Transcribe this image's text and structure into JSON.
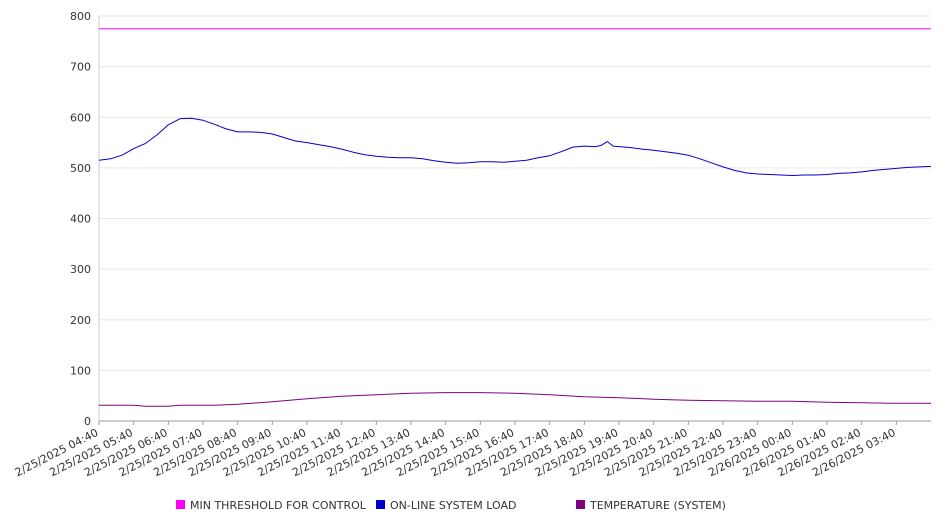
{
  "chart_data": {
    "type": "line",
    "title": "",
    "xlabel": "",
    "ylabel": "",
    "ylim": [
      0,
      800
    ],
    "y_ticks": [
      0,
      100,
      200,
      300,
      400,
      500,
      600,
      700,
      800
    ],
    "x_tick_labels": [
      "2/25/2025 04:40",
      "2/25/2025 05:40",
      "2/25/2025 06:40",
      "2/25/2025 07:40",
      "2/25/2025 08:40",
      "2/25/2025 09:40",
      "2/25/2025 10:40",
      "2/25/2025 11:40",
      "2/25/2025 12:40",
      "2/25/2025 13:40",
      "2/25/2025 14:40",
      "2/25/2025 15:40",
      "2/25/2025 16:40",
      "2/25/2025 17:40",
      "2/25/2025 18:40",
      "2/25/2025 19:40",
      "2/25/2025 20:40",
      "2/25/2025 21:40",
      "2/25/2025 22:40",
      "2/25/2025 23:40",
      "2/26/2025 00:40",
      "2/26/2025 01:40",
      "2/26/2025 02:40",
      "2/26/2025 03:40"
    ],
    "x_range": [
      "2/25/2025 04:40",
      "2/26/2025 04:40"
    ],
    "grid": "horizontal",
    "legend_position": "bottom",
    "series": [
      {
        "name": "MIN THRESHOLD FOR CONTROL",
        "color": "#ff00ff",
        "points": [
          [
            "2/25/2025 04:40",
            775
          ],
          [
            "2/26/2025 04:40",
            775
          ]
        ]
      },
      {
        "name": "ON-LINE SYSTEM LOAD",
        "color": "#0000cc",
        "points": [
          [
            "2/25/2025 04:40",
            515
          ],
          [
            "2/25/2025 05:00",
            518
          ],
          [
            "2/25/2025 05:20",
            525
          ],
          [
            "2/25/2025 05:40",
            538
          ],
          [
            "2/25/2025 06:00",
            548
          ],
          [
            "2/25/2025 06:20",
            565
          ],
          [
            "2/25/2025 06:40",
            585
          ],
          [
            "2/25/2025 07:00",
            597
          ],
          [
            "2/25/2025 07:20",
            598
          ],
          [
            "2/25/2025 07:40",
            594
          ],
          [
            "2/25/2025 08:00",
            586
          ],
          [
            "2/25/2025 08:20",
            577
          ],
          [
            "2/25/2025 08:40",
            571
          ],
          [
            "2/25/2025 09:00",
            571
          ],
          [
            "2/25/2025 09:20",
            570
          ],
          [
            "2/25/2025 09:40",
            567
          ],
          [
            "2/25/2025 10:00",
            560
          ],
          [
            "2/25/2025 10:20",
            553
          ],
          [
            "2/25/2025 10:40",
            550
          ],
          [
            "2/25/2025 11:00",
            546
          ],
          [
            "2/25/2025 11:20",
            542
          ],
          [
            "2/25/2025 11:40",
            537
          ],
          [
            "2/25/2025 12:00",
            531
          ],
          [
            "2/25/2025 12:20",
            526
          ],
          [
            "2/25/2025 12:40",
            523
          ],
          [
            "2/25/2025 13:00",
            521
          ],
          [
            "2/25/2025 13:20",
            520
          ],
          [
            "2/25/2025 13:40",
            520
          ],
          [
            "2/25/2025 14:00",
            518
          ],
          [
            "2/25/2025 14:20",
            514
          ],
          [
            "2/25/2025 14:40",
            511
          ],
          [
            "2/25/2025 15:00",
            509
          ],
          [
            "2/25/2025 15:20",
            510
          ],
          [
            "2/25/2025 15:40",
            512
          ],
          [
            "2/25/2025 16:00",
            512
          ],
          [
            "2/25/2025 16:20",
            511
          ],
          [
            "2/25/2025 16:40",
            513
          ],
          [
            "2/25/2025 17:00",
            515
          ],
          [
            "2/25/2025 17:20",
            520
          ],
          [
            "2/25/2025 17:40",
            524
          ],
          [
            "2/25/2025 18:00",
            532
          ],
          [
            "2/25/2025 18:20",
            541
          ],
          [
            "2/25/2025 18:40",
            543
          ],
          [
            "2/25/2025 19:00",
            542
          ],
          [
            "2/25/2025 19:10",
            545
          ],
          [
            "2/25/2025 19:20",
            552
          ],
          [
            "2/25/2025 19:30",
            543
          ],
          [
            "2/25/2025 20:00",
            540
          ],
          [
            "2/25/2025 20:20",
            537
          ],
          [
            "2/25/2025 20:40",
            535
          ],
          [
            "2/25/2025 21:00",
            532
          ],
          [
            "2/25/2025 21:20",
            529
          ],
          [
            "2/25/2025 21:40",
            525
          ],
          [
            "2/25/2025 22:00",
            518
          ],
          [
            "2/25/2025 22:20",
            510
          ],
          [
            "2/25/2025 22:40",
            502
          ],
          [
            "2/25/2025 23:00",
            495
          ],
          [
            "2/25/2025 23:20",
            490
          ],
          [
            "2/25/2025 23:40",
            488
          ],
          [
            "2/26/2025 00:00",
            487
          ],
          [
            "2/26/2025 00:20",
            486
          ],
          [
            "2/26/2025 00:40",
            485
          ],
          [
            "2/26/2025 01:00",
            486
          ],
          [
            "2/26/2025 01:20",
            486
          ],
          [
            "2/26/2025 01:40",
            487
          ],
          [
            "2/26/2025 02:00",
            489
          ],
          [
            "2/26/2025 02:20",
            490
          ],
          [
            "2/26/2025 02:40",
            492
          ],
          [
            "2/26/2025 03:00",
            495
          ],
          [
            "2/26/2025 03:20",
            497
          ],
          [
            "2/26/2025 03:40",
            499
          ],
          [
            "2/26/2025 04:00",
            501
          ],
          [
            "2/26/2025 04:40",
            503
          ]
        ]
      },
      {
        "name": "TEMPERATURE (SYSTEM)",
        "color": "#800080",
        "points": [
          [
            "2/25/2025 04:40",
            31
          ],
          [
            "2/25/2025 05:40",
            31
          ],
          [
            "2/25/2025 06:00",
            29
          ],
          [
            "2/25/2025 06:40",
            29
          ],
          [
            "2/25/2025 07:00",
            31
          ],
          [
            "2/25/2025 08:00",
            31
          ],
          [
            "2/25/2025 08:40",
            33
          ],
          [
            "2/25/2025 09:40",
            38
          ],
          [
            "2/25/2025 10:40",
            44
          ],
          [
            "2/25/2025 11:40",
            49
          ],
          [
            "2/25/2025 12:40",
            52
          ],
          [
            "2/25/2025 13:40",
            55
          ],
          [
            "2/25/2025 14:40",
            56
          ],
          [
            "2/25/2025 15:40",
            56
          ],
          [
            "2/25/2025 16:40",
            55
          ],
          [
            "2/25/2025 17:40",
            52
          ],
          [
            "2/25/2025 18:40",
            48
          ],
          [
            "2/25/2025 19:40",
            46
          ],
          [
            "2/25/2025 20:40",
            43
          ],
          [
            "2/25/2025 21:40",
            41
          ],
          [
            "2/25/2025 22:40",
            40
          ],
          [
            "2/25/2025 23:40",
            39
          ],
          [
            "2/26/2025 00:40",
            39
          ],
          [
            "2/26/2025 01:40",
            37
          ],
          [
            "2/26/2025 02:40",
            36
          ],
          [
            "2/26/2025 03:40",
            35
          ],
          [
            "2/26/2025 04:40",
            35
          ]
        ]
      }
    ]
  }
}
